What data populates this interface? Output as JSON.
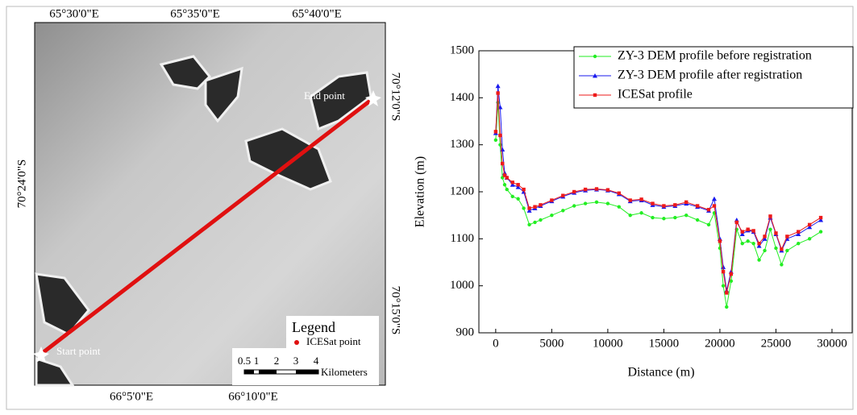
{
  "map": {
    "top_labels": [
      "65°30'0\"E",
      "65°35'0\"E",
      "65°40'0\"E"
    ],
    "bottom_labels": [
      "66°5'0\"E",
      "66°10'0\"E"
    ],
    "left_labels": [
      "70°24'0\"S"
    ],
    "right_labels": [
      "70°12'0\"S",
      "70°15'0\"S"
    ],
    "end_label": "End point",
    "start_label": "Start point",
    "legend_title": "Legend",
    "legend_item": "ICESat point",
    "scale_labels": [
      "0.5",
      "1",
      "2",
      "3",
      "4"
    ],
    "scale_unit": "Kilometers"
  },
  "chart_data": {
    "type": "line",
    "x_label": "Distance (m)",
    "y_label": "Elevation (m)",
    "xlim": [
      -1500,
      31800
    ],
    "ylim": [
      900,
      1500
    ],
    "xticks": [
      0,
      5000,
      10000,
      15000,
      20000,
      25000,
      30000
    ],
    "yticks": [
      900,
      1000,
      1100,
      1200,
      1300,
      1400,
      1500
    ],
    "legend": "upper right",
    "x": [
      0,
      200,
      400,
      600,
      800,
      1000,
      1500,
      2000,
      2500,
      3000,
      3500,
      4000,
      5000,
      6000,
      7000,
      8000,
      9000,
      10000,
      11000,
      12000,
      13000,
      14000,
      15000,
      16000,
      17000,
      18000,
      19000,
      19500,
      20000,
      20300,
      20600,
      21000,
      21500,
      22000,
      22500,
      23000,
      23500,
      24000,
      24500,
      25000,
      25500,
      26000,
      27000,
      28000,
      29000
    ],
    "series": [
      {
        "name": "ZY-3 DEM profile before registration",
        "color": "#22ee22",
        "marker": "circle",
        "values": [
          1310,
          1390,
          1300,
          1230,
          1215,
          1205,
          1190,
          1185,
          1165,
          1130,
          1135,
          1140,
          1150,
          1160,
          1170,
          1175,
          1178,
          1175,
          1168,
          1150,
          1155,
          1145,
          1143,
          1145,
          1150,
          1140,
          1130,
          1155,
          1080,
          1000,
          955,
          1010,
          1120,
          1090,
          1095,
          1090,
          1055,
          1075,
          1120,
          1080,
          1045,
          1075,
          1090,
          1100,
          1115
        ]
      },
      {
        "name": "ZY-3 DEM profile after registration",
        "color": "#1a1aee",
        "marker": "triangle",
        "values": [
          1325,
          1425,
          1380,
          1290,
          1240,
          1230,
          1215,
          1210,
          1200,
          1160,
          1165,
          1170,
          1180,
          1190,
          1198,
          1203,
          1205,
          1203,
          1195,
          1180,
          1182,
          1172,
          1168,
          1170,
          1175,
          1168,
          1160,
          1185,
          1100,
          1040,
          990,
          1030,
          1140,
          1110,
          1118,
          1115,
          1085,
          1100,
          1145,
          1110,
          1075,
          1100,
          1110,
          1125,
          1140
        ]
      },
      {
        "name": "ICESat profile",
        "color": "#ee1a1a",
        "marker": "square",
        "values": [
          1328,
          1410,
          1320,
          1260,
          1235,
          1230,
          1220,
          1215,
          1205,
          1165,
          1168,
          1172,
          1182,
          1192,
          1200,
          1205,
          1206,
          1204,
          1197,
          1182,
          1184,
          1175,
          1170,
          1172,
          1178,
          1170,
          1162,
          1170,
          1095,
          1030,
          985,
          1025,
          1135,
          1115,
          1120,
          1117,
          1090,
          1105,
          1148,
          1112,
          1078,
          1105,
          1115,
          1130,
          1145
        ]
      }
    ]
  }
}
